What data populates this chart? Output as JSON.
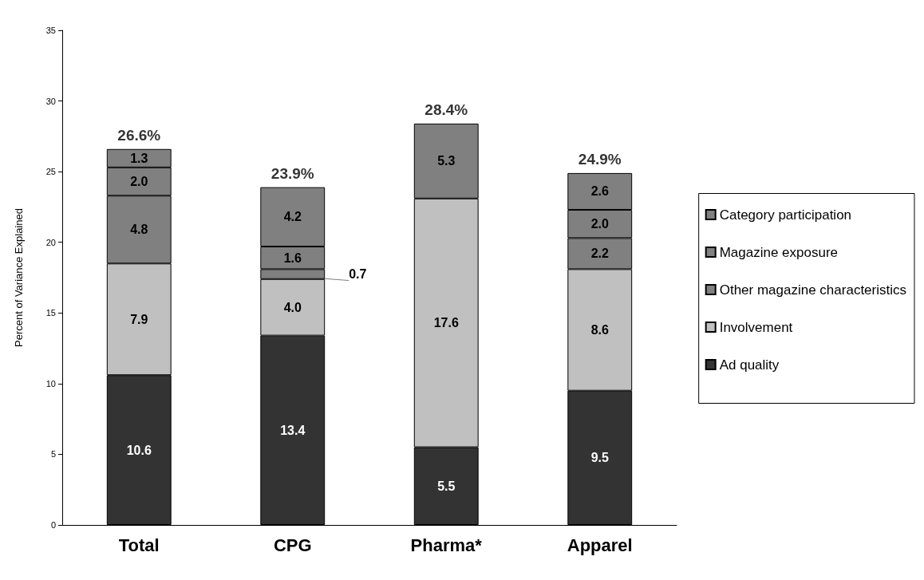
{
  "chart_data": {
    "type": "bar",
    "stacked": true,
    "ylabel": "Percent of Variance Explained",
    "categories": [
      "Total",
      "CPG",
      "Pharma*",
      "Apparel"
    ],
    "series": [
      {
        "name": "Ad quality",
        "color": "#333333",
        "values": [
          10.6,
          13.4,
          5.5,
          9.5
        ],
        "value_labels": [
          "10.6",
          "13.4",
          "5.5",
          "9.5"
        ]
      },
      {
        "name": "Involvement",
        "color": "#c0c0c0",
        "values": [
          7.9,
          4.0,
          17.6,
          8.6
        ],
        "value_labels": [
          "7.9",
          "4.0",
          "17.6",
          "8.6"
        ]
      },
      {
        "name": "Other magazine characteristics",
        "color": "#808080",
        "values": [
          4.8,
          0.7,
          5.3,
          2.2
        ],
        "value_labels": [
          "4.8",
          "0.7",
          "5.3",
          "2.2"
        ]
      },
      {
        "name": "Magazine exposure",
        "color": "#808080",
        "values": [
          2.0,
          1.6,
          null,
          2.0
        ],
        "value_labels": [
          "2.0",
          "1.6",
          null,
          "2.0"
        ]
      },
      {
        "name": "Category participation",
        "color": "#808080",
        "values": [
          1.3,
          4.2,
          null,
          2.6
        ],
        "value_labels": [
          "1.3",
          "4.2",
          null,
          "2.6"
        ]
      }
    ],
    "totals": [
      "26.6%",
      "23.9%",
      "28.4%",
      "24.9%"
    ],
    "ylim": [
      0,
      35
    ],
    "yticks": [
      0,
      5,
      10,
      15,
      20,
      25,
      30,
      35
    ],
    "grid": false,
    "legend": "right"
  }
}
